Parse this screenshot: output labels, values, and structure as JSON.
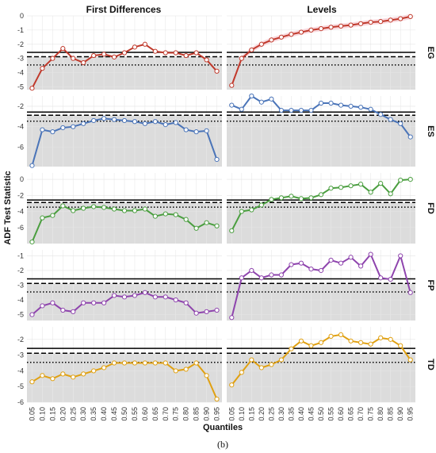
{
  "colors": {
    "EG": "#c0392b",
    "ES": "#4a74b8",
    "FD": "#4a9e3f",
    "FP": "#8e44ad",
    "TD": "#e0a010",
    "shade": "#dcdcdc",
    "ribbon": "#f6d0d6"
  },
  "caption": "(b)",
  "chart_data": {
    "type": "line",
    "xlabel": "Quantiles",
    "ylabel": "ADF Test Statistic",
    "columns": [
      "First Differences",
      "Levels"
    ],
    "rows": [
      "EG",
      "ES",
      "FD",
      "FP",
      "TD"
    ],
    "x": [
      0.05,
      0.1,
      0.15,
      0.2,
      0.25,
      0.3,
      0.35,
      0.4,
      0.45,
      0.5,
      0.55,
      0.6,
      0.65,
      0.7,
      0.75,
      0.8,
      0.85,
      0.9,
      0.95
    ],
    "x_tick_labels": [
      "0.05",
      "0.10",
      "0.15",
      "0.20",
      "0.25",
      "0.30",
      "0.35",
      "0.40",
      "0.45",
      "0.50",
      "0.55",
      "0.60",
      "0.65",
      "0.70",
      "0.75",
      "0.80",
      "0.85",
      "0.90",
      "0.95"
    ],
    "critical_values": [
      -2.57,
      -2.88,
      -3.46
    ],
    "panels": [
      {
        "row": "EG",
        "col": "First Differences",
        "ylim": [
          -5.2,
          0
        ],
        "yticks": [
          0,
          -1,
          -2,
          -3,
          -4,
          -5
        ],
        "values": [
          -5.1,
          -3.7,
          -3.0,
          -2.3,
          -3.0,
          -3.3,
          -2.8,
          -2.7,
          -2.9,
          -2.6,
          -2.2,
          -2.0,
          -2.5,
          -2.6,
          -2.6,
          -2.8,
          -2.6,
          -3.1,
          -3.9
        ]
      },
      {
        "row": "EG",
        "col": "Levels",
        "ylim": [
          -5.2,
          0
        ],
        "yticks": [
          0,
          -1,
          -2,
          -3,
          -4,
          -5
        ],
        "values": [
          -4.9,
          -3.0,
          -2.4,
          -2.0,
          -1.7,
          -1.5,
          -1.3,
          -1.15,
          -1.0,
          -0.9,
          -0.8,
          -0.72,
          -0.65,
          -0.55,
          -0.45,
          -0.4,
          -0.3,
          -0.2,
          -0.05
        ]
      },
      {
        "row": "ES",
        "col": "First Differences",
        "ylim": [
          -7.9,
          -1.0
        ],
        "yticks": [
          -2,
          -4,
          -6
        ],
        "values": [
          -7.8,
          -4.3,
          -4.5,
          -4.1,
          -4.0,
          -3.7,
          -3.4,
          -3.2,
          -3.3,
          -3.4,
          -3.5,
          -3.7,
          -3.5,
          -3.8,
          -3.6,
          -4.3,
          -4.5,
          -4.4,
          -7.2
        ]
      },
      {
        "row": "ES",
        "col": "Levels",
        "ylim": [
          -7.9,
          -1.0
        ],
        "yticks": [
          -2,
          -4,
          -6
        ],
        "values": [
          -1.9,
          -2.3,
          -1.0,
          -1.6,
          -1.3,
          -2.4,
          -2.4,
          -2.4,
          -2.4,
          -1.7,
          -1.7,
          -1.9,
          -2.0,
          -2.1,
          -2.3,
          -2.8,
          -3.3,
          -3.7,
          -5.0
        ]
      },
      {
        "row": "FD",
        "col": "First Differences",
        "ylim": [
          -8.0,
          0.8
        ],
        "yticks": [
          0,
          -2,
          -4,
          -6
        ],
        "values": [
          -7.8,
          -4.8,
          -4.5,
          -3.3,
          -3.9,
          -3.6,
          -3.4,
          -3.5,
          -3.7,
          -3.9,
          -3.9,
          -3.7,
          -4.6,
          -4.3,
          -4.4,
          -5.0,
          -6.1,
          -5.4,
          -5.8
        ]
      },
      {
        "row": "FD",
        "col": "Levels",
        "ylim": [
          -8.0,
          0.8
        ],
        "yticks": [
          0,
          -2,
          -4,
          -6
        ],
        "values": [
          -6.4,
          -4.0,
          -3.8,
          -3.2,
          -2.5,
          -2.3,
          -2.1,
          -2.4,
          -2.3,
          -1.9,
          -1.1,
          -1.0,
          -0.8,
          -0.6,
          -1.6,
          -0.5,
          -1.8,
          -0.1,
          0.0
        ]
      },
      {
        "row": "FP",
        "col": "First Differences",
        "ylim": [
          -5.4,
          -0.6
        ],
        "yticks": [
          -1,
          -2,
          -3,
          -4,
          -5
        ],
        "values": [
          -5.0,
          -4.4,
          -4.2,
          -4.7,
          -4.8,
          -4.2,
          -4.2,
          -4.2,
          -3.7,
          -3.8,
          -3.7,
          -3.5,
          -3.8,
          -3.8,
          -4.0,
          -4.2,
          -4.9,
          -4.8,
          -4.7
        ]
      },
      {
        "row": "FP",
        "col": "Levels",
        "ylim": [
          -5.4,
          -0.6
        ],
        "yticks": [
          -1,
          -2,
          -3,
          -4,
          -5
        ],
        "values": [
          -5.2,
          -2.5,
          -2.0,
          -2.5,
          -2.3,
          -2.3,
          -1.6,
          -1.5,
          -1.9,
          -2.0,
          -1.3,
          -1.5,
          -1.1,
          -1.7,
          -0.9,
          -2.5,
          -2.6,
          -1.0,
          -3.5
        ]
      },
      {
        "row": "TD",
        "col": "First Differences",
        "ylim": [
          -6.0,
          -1.2
        ],
        "yticks": [
          -2,
          -3,
          -4,
          -5,
          -6
        ],
        "values": [
          -4.7,
          -4.3,
          -4.5,
          -4.2,
          -4.4,
          -4.2,
          -4.0,
          -3.8,
          -3.5,
          -3.5,
          -3.5,
          -3.5,
          -3.5,
          -3.5,
          -4.0,
          -3.9,
          -3.5,
          -4.3,
          -5.8
        ]
      },
      {
        "row": "TD",
        "col": "Levels",
        "ylim": [
          -6.0,
          -1.2
        ],
        "yticks": [
          -2,
          -3,
          -4,
          -5,
          -6
        ],
        "values": [
          -4.9,
          -4.1,
          -3.3,
          -3.8,
          -3.6,
          -3.3,
          -2.6,
          -2.1,
          -2.4,
          -2.2,
          -1.8,
          -1.7,
          -2.1,
          -2.2,
          -2.3,
          -1.9,
          -2.0,
          -2.4,
          -3.3
        ]
      }
    ]
  }
}
